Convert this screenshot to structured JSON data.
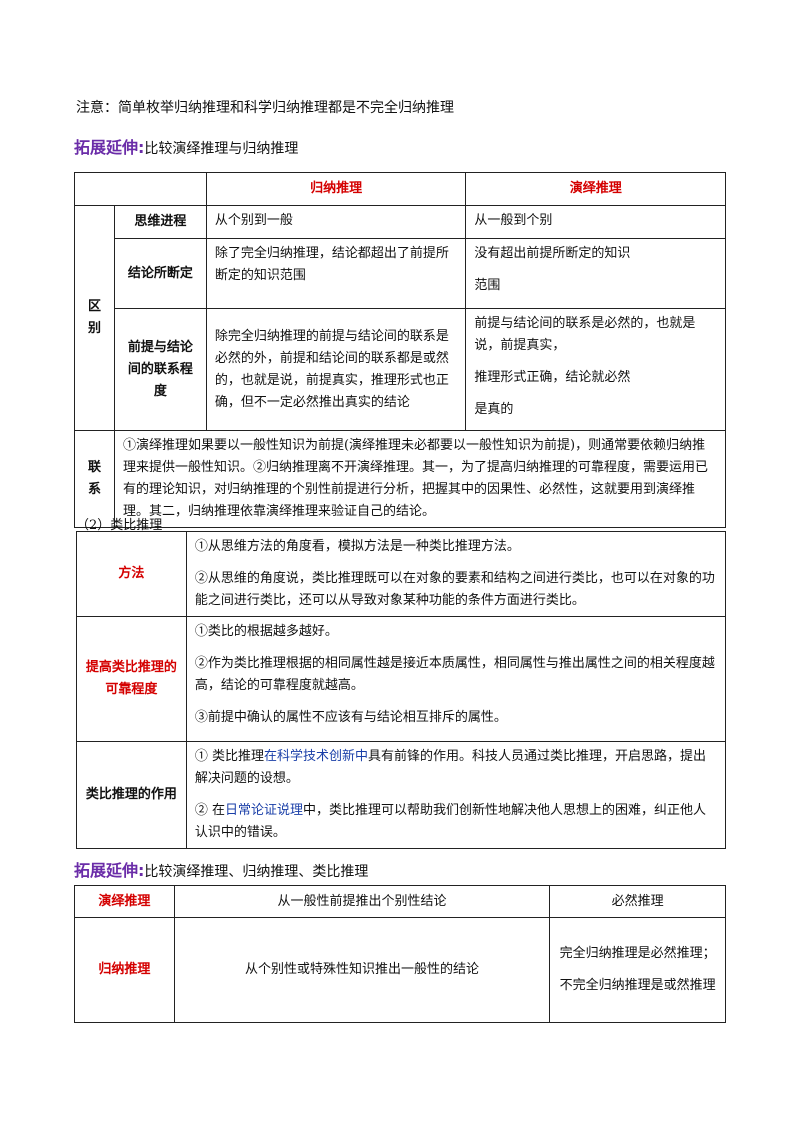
{
  "note": "注意：简单枚举归纳推理和科学归纳推理都是不完全归纳推理",
  "ext1": {
    "tag": "拓展延伸:",
    "text": "比较演绎推理与归纳推理"
  },
  "table1": {
    "head_induction": "归纳推理",
    "head_deduction": "演绎推理",
    "group_diff": "区\n别",
    "rows": [
      {
        "label": "思维进程",
        "induction": "从个别到一般",
        "deduction": "从一般到个别"
      },
      {
        "label": "结论所断定",
        "induction": "除了完全归纳推理，结论都超出了前提所断定的知识范围",
        "deduction_a": "没有超出前提所断定的知识",
        "deduction_b": "范围"
      },
      {
        "label": "前提与结论间的联系程度",
        "induction": "除完全归纳推理的前提与结论间的联系是必然的外，前提和结论间的联系都是或然的，也就是说，前提真实，推理形式也正确，但不一定必然推出真实的结论",
        "deduction_a": "前提与结论间的联系是必然的，也就是说，前提真实，",
        "deduction_b": "推理形式正确，结论就必然",
        "deduction_c": "是真的"
      }
    ],
    "link_label": "联\n系",
    "link_text": "①演绎推理如果要以一般性知识为前提(演绎推理未必都要以一般性知识为前提)，则通常要依赖归纳推理来提供一般性知识。②归纳推理离不开演绎推理。其一，为了提高归纳推理的可靠程度，需要运用已有的理论知识，对归纳推理的个别性前提进行分析，把握其中的因果性、必然性，这就要用到演绎推理。其二，归纳推理依靠演绎推理来验证自己的结论。"
  },
  "section2": "（2）类比推理",
  "table2": {
    "method_label": "方法",
    "method_1": "①从思维方法的角度看，模拟方法是一种类比推理方法。",
    "method_2": "②从思维的角度说，类比推理既可以在对象的要素和结构之间进行类比，也可以在对象的功能之间进行类比，还可以从导致对象某种功能的条件方面进行类比。",
    "reliab_label": "提高类比推理的可靠程度",
    "reliab_1": "①类比的根据越多越好。",
    "reliab_2": "②作为类比推理根据的相同属性越是接近本质属性，相同属性与推出属性之间的相关程度越高，结论的可靠程度就越高。",
    "reliab_3": "③前提中确认的属性不应该有与结论相互排斥的属性。",
    "role_label": "类比推理的作用",
    "role_1_pre": "①  类比推理",
    "role_1_link": "在科学技术创新中",
    "role_1_post": "具有前锋的作用。科技人员通过类比推理，开启思路，提出解决问题的设想。",
    "role_2_pre": "②  在",
    "role_2_link": "日常论证说理",
    "role_2_post": "中，类比推理可以帮助我们创新性地解决他人思想上的困难，纠正他人认识中的错误。"
  },
  "ext2": {
    "tag": "拓展延伸:",
    "text": "比较演绎推理、归纳推理、类比推理"
  },
  "table3": {
    "r1_label": "演绎推理",
    "r1_desc": "从一般性前提推出个别性结论",
    "r1_type": "必然推理",
    "r2_label": "归纳推理",
    "r2_desc": "从个别性或特殊性知识推出一般性的结论",
    "r2_type_a": "完全归纳推理是必然推理；",
    "r2_type_b": "不完全归纳推理是或然推理"
  },
  "colors": {
    "red": "#d40000",
    "purple": "#6a2ca8",
    "blue": "#1a3fa8"
  }
}
